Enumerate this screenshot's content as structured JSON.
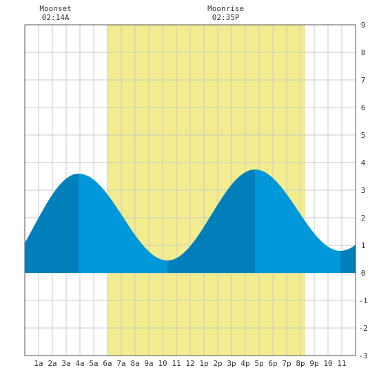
{
  "chart_data": {
    "type": "area",
    "title": "",
    "xlabel": "",
    "ylabel": "",
    "x_unit": "hours since midnight",
    "xlim": [
      0,
      24
    ],
    "ylim": [
      -3,
      9
    ],
    "y_ticks": [
      -3,
      -2,
      -1,
      0,
      1,
      2,
      3,
      4,
      5,
      6,
      7,
      8,
      9
    ],
    "x_ticks": [
      {
        "x": 1,
        "label": "1a"
      },
      {
        "x": 2,
        "label": "2a"
      },
      {
        "x": 3,
        "label": "3a"
      },
      {
        "x": 4,
        "label": "4a"
      },
      {
        "x": 5,
        "label": "5a"
      },
      {
        "x": 6,
        "label": "6a"
      },
      {
        "x": 7,
        "label": "7a"
      },
      {
        "x": 8,
        "label": "8a"
      },
      {
        "x": 9,
        "label": "9a"
      },
      {
        "x": 10,
        "label": "10"
      },
      {
        "x": 11,
        "label": "11"
      },
      {
        "x": 12,
        "label": "12"
      },
      {
        "x": 13,
        "label": "1p"
      },
      {
        "x": 14,
        "label": "2p"
      },
      {
        "x": 15,
        "label": "3p"
      },
      {
        "x": 16,
        "label": "4p"
      },
      {
        "x": 17,
        "label": "5p"
      },
      {
        "x": 18,
        "label": "6p"
      },
      {
        "x": 19,
        "label": "7p"
      },
      {
        "x": 20,
        "label": "8p"
      },
      {
        "x": 21,
        "label": "9p"
      },
      {
        "x": 22,
        "label": "10"
      },
      {
        "x": 23,
        "label": "11"
      }
    ],
    "grid": true,
    "daylight": {
      "start": 6.0,
      "end": 20.35
    },
    "moon_events": [
      {
        "name": "Moonset",
        "time": "02:14A",
        "x": 2.23
      },
      {
        "name": "Moonrise",
        "time": "02:35P",
        "x": 14.58
      }
    ],
    "tide_extremes": [
      {
        "x": 3.9,
        "y": 3.6,
        "kind": "high"
      },
      {
        "x": 10.35,
        "y": 0.45,
        "kind": "low"
      },
      {
        "x": 16.7,
        "y": 3.75,
        "kind": "high"
      },
      {
        "x": 22.9,
        "y": 0.8,
        "kind": "low"
      }
    ],
    "start_value": 1.7,
    "end_value": 1.05,
    "colors": {
      "daylight": "#f3ec8e",
      "tide_light": "#0098d8",
      "tide_dark": "#007fba",
      "grid": "#c8c8c8",
      "frame": "#555555"
    }
  }
}
